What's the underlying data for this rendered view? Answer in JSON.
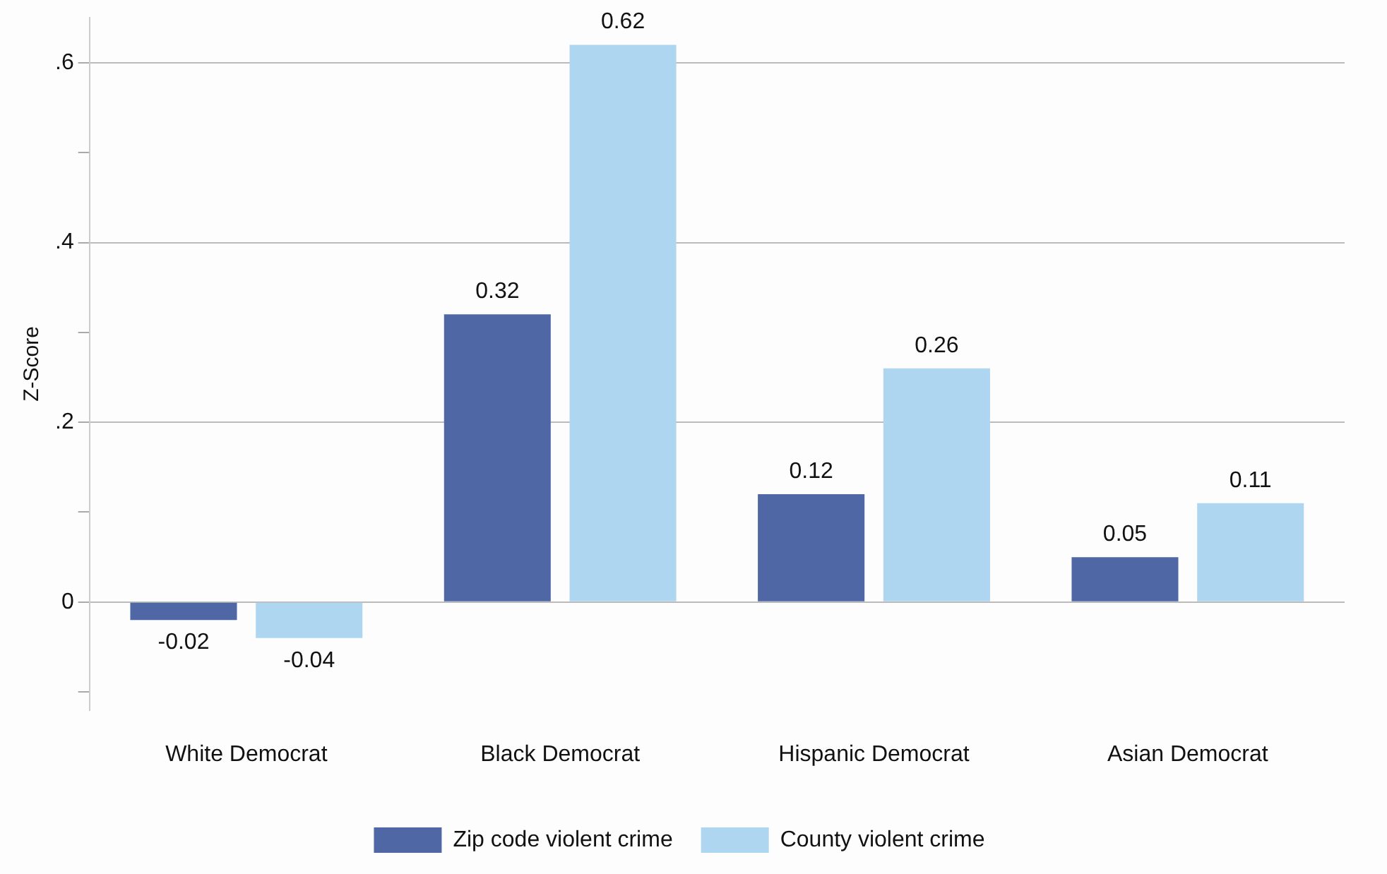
{
  "chart_data": {
    "type": "bar",
    "ylabel": "Z-Score",
    "categories": [
      "White Democrat",
      "Black Democrat",
      "Hispanic Democrat",
      "Asian Democrat"
    ],
    "series": [
      {
        "name": "Zip code violent crime",
        "color": "#4f68a5",
        "values": [
          -0.02,
          0.32,
          0.12,
          0.05
        ]
      },
      {
        "name": "County violent crime",
        "color": "#afd6f0",
        "values": [
          -0.04,
          0.62,
          0.26,
          0.11
        ]
      }
    ],
    "ylim": [
      -0.12,
      0.65
    ],
    "yticks": [
      {
        "value": -0.1,
        "label": null
      },
      {
        "value": 0,
        "label": "0"
      },
      {
        "value": 0.1,
        "label": null
      },
      {
        "value": 0.2,
        "label": ".2"
      },
      {
        "value": 0.3,
        "label": null
      },
      {
        "value": 0.4,
        "label": ".4"
      },
      {
        "value": 0.5,
        "label": null
      },
      {
        "value": 0.6,
        "label": ".6"
      }
    ],
    "grid": "y",
    "legend": "bottom",
    "data_labels": true
  }
}
